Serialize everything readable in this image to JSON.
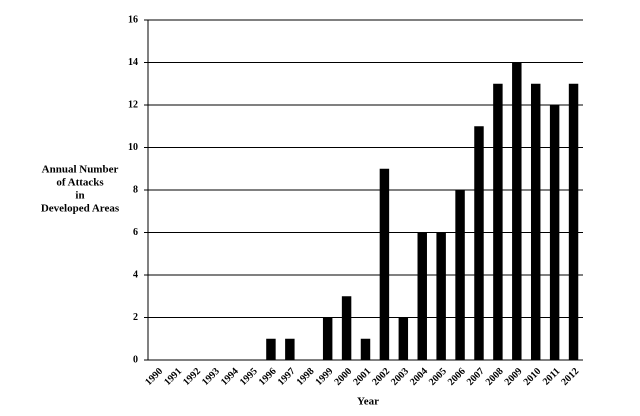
{
  "chart_data": {
    "type": "bar",
    "y_label_lines": [
      "Annual Number",
      "of Attacks",
      "in",
      "Developed Areas"
    ],
    "x_label": "Year",
    "categories": [
      "1990",
      "1991",
      "1992",
      "1993",
      "1994",
      "1995",
      "1996",
      "1997",
      "1998",
      "1999",
      "2000",
      "2001",
      "2002",
      "2003",
      "2004",
      "2005",
      "2006",
      "2007",
      "2008",
      "2009",
      "2010",
      "2011",
      "2012"
    ],
    "values": [
      0,
      0,
      0,
      0,
      0,
      0,
      1,
      1,
      0,
      2,
      3,
      1,
      9,
      2,
      6,
      6,
      8,
      11,
      13,
      14,
      13,
      12,
      13
    ],
    "color": "#000000",
    "ylim": [
      0,
      16
    ],
    "yticks": [
      0,
      2,
      4,
      6,
      8,
      10,
      12,
      14,
      16
    ],
    "grid": true
  }
}
